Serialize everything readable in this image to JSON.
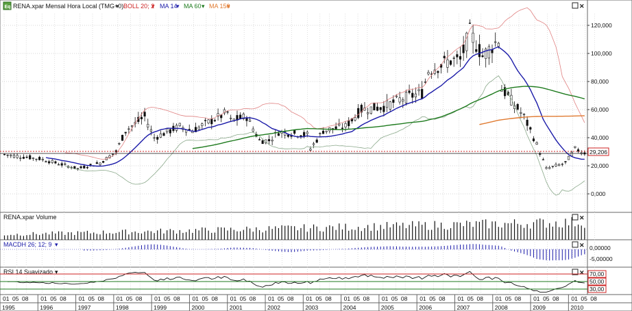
{
  "header": {
    "icon_text": "Eq",
    "symbol": "RENA.xpar Mensal Hora Local (TMG+0)",
    "indicators": [
      {
        "label": "BOLL 20; 2",
        "color": "#cc2222"
      },
      {
        "label": "MA 14",
        "color": "#1a1aa8"
      },
      {
        "label": "MA 60",
        "color": "#1d7a1d"
      },
      {
        "label": "MA 150",
        "color": "#e07a30"
      }
    ]
  },
  "price_panel": {
    "y_ticks": [
      "120,000",
      "100,000",
      "80,000",
      "60,000",
      "40,000",
      "20,000",
      "0,000"
    ],
    "y_values": [
      120000,
      100000,
      80000,
      60000,
      40000,
      20000,
      0
    ],
    "last_price_label": "29,206",
    "last_price": 29206
  },
  "volume_panel": {
    "title": "RENA.xpar Volume"
  },
  "macd_panel": {
    "title": "MACDH 26; 12; 9",
    "y_ticks": [
      "0,00000",
      "-5,00000"
    ]
  },
  "rsi_panel": {
    "title": "RSI 14 Suavizado",
    "levels": [
      "70,00",
      "50,00",
      "30,00"
    ]
  },
  "time_axis": {
    "years": [
      "1995",
      "1996",
      "1997",
      "1998",
      "1999",
      "2000",
      "2001",
      "2002",
      "2003",
      "2004",
      "2005",
      "2006",
      "2007",
      "2008",
      "2009",
      "2010"
    ],
    "month_ticks": [
      "01",
      "05",
      "08"
    ]
  },
  "chart_data": {
    "type": "candlestick",
    "symbol": "RENA.xpar",
    "x_start": "1995-01",
    "x_end": "2010-03",
    "ylim": [
      -10000,
      135000
    ],
    "close_series": {
      "years": [
        1995,
        1996,
        1997,
        1998,
        1999,
        2000,
        2001,
        2002,
        2003,
        2004,
        2005,
        2006,
        2007,
        2008,
        2009,
        2010
      ],
      "year_end_close": [
        25000,
        18000,
        30000,
        40000,
        45000,
        52000,
        38000,
        42000,
        48000,
        62000,
        72000,
        95000,
        110000,
        35000,
        32000,
        29206
      ]
    },
    "overlays": [
      "BOLL 20; 2",
      "MA 14",
      "MA 60",
      "MA 150"
    ]
  }
}
